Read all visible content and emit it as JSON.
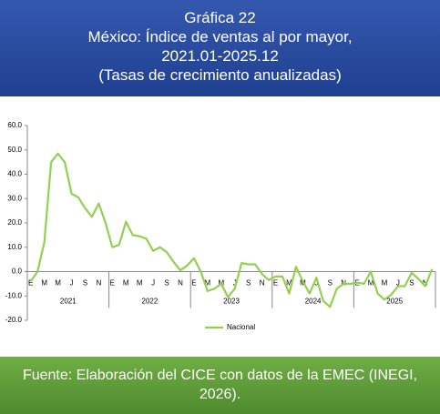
{
  "chart_data": {
    "type": "line",
    "title": [
      "Gráfica 22",
      "México: Índice de ventas al por mayor,",
      "2021.01-2025.12",
      "(Tasas de crecimiento anualizadas)"
    ],
    "source": "Fuente: Elaboración del CICE con datos de la EMEC (INEGI, 2026).",
    "categories": [
      "E",
      null,
      "M",
      null,
      "M",
      null,
      "J",
      null,
      "S",
      null,
      "N",
      null,
      "E",
      null,
      "M",
      null,
      "M",
      null,
      "J",
      null,
      "S",
      null,
      "N",
      null,
      "E",
      null,
      "M",
      null,
      "M",
      null,
      "J",
      null,
      "S",
      null,
      "N",
      null,
      "E",
      null,
      "M",
      null,
      "M",
      null,
      "J",
      null,
      "S",
      null,
      "N",
      null,
      "E",
      null,
      "M",
      null,
      "M",
      null,
      "J",
      null,
      "S",
      null,
      "N",
      null
    ],
    "groups": [
      "2021",
      "2022",
      "2023",
      "2024",
      "2025"
    ],
    "series": [
      {
        "name": "Nacional",
        "color": "#92d050",
        "values": [
          -4,
          0,
          12,
          45,
          48.5,
          45,
          32,
          30.5,
          26,
          22.5,
          28,
          20,
          10,
          11,
          20.5,
          15,
          14.5,
          13.5,
          8.5,
          10,
          8,
          4,
          0.5,
          2.5,
          5.5,
          0,
          -8,
          -7,
          -5,
          -10.5,
          -7,
          3.5,
          3,
          3,
          -1,
          -3.5,
          -2,
          -2,
          -9,
          2,
          -4,
          -9,
          -2.5,
          -12,
          -14.5,
          -7,
          -5,
          -5,
          -4.5,
          -5,
          0,
          -9,
          -11.5,
          -9.5,
          -6,
          -6,
          -0.5,
          -3,
          -6,
          1
        ]
      }
    ],
    "ylim": [
      -20,
      60
    ],
    "yticks": [
      {
        "value": 60,
        "label": "60.0"
      },
      {
        "value": 50,
        "label": "50.0"
      },
      {
        "value": 40,
        "label": "40.0"
      },
      {
        "value": 30,
        "label": "30.0"
      },
      {
        "value": 20,
        "label": "20.0"
      },
      {
        "value": 10,
        "label": "10.0"
      },
      {
        "value": 0,
        "label": "0.0"
      },
      {
        "value": -10,
        "label": "-10.0"
      },
      {
        "value": -20,
        "label": "-20.0"
      }
    ],
    "negative_tick_color": "#ff0000",
    "legend": "bottom"
  }
}
